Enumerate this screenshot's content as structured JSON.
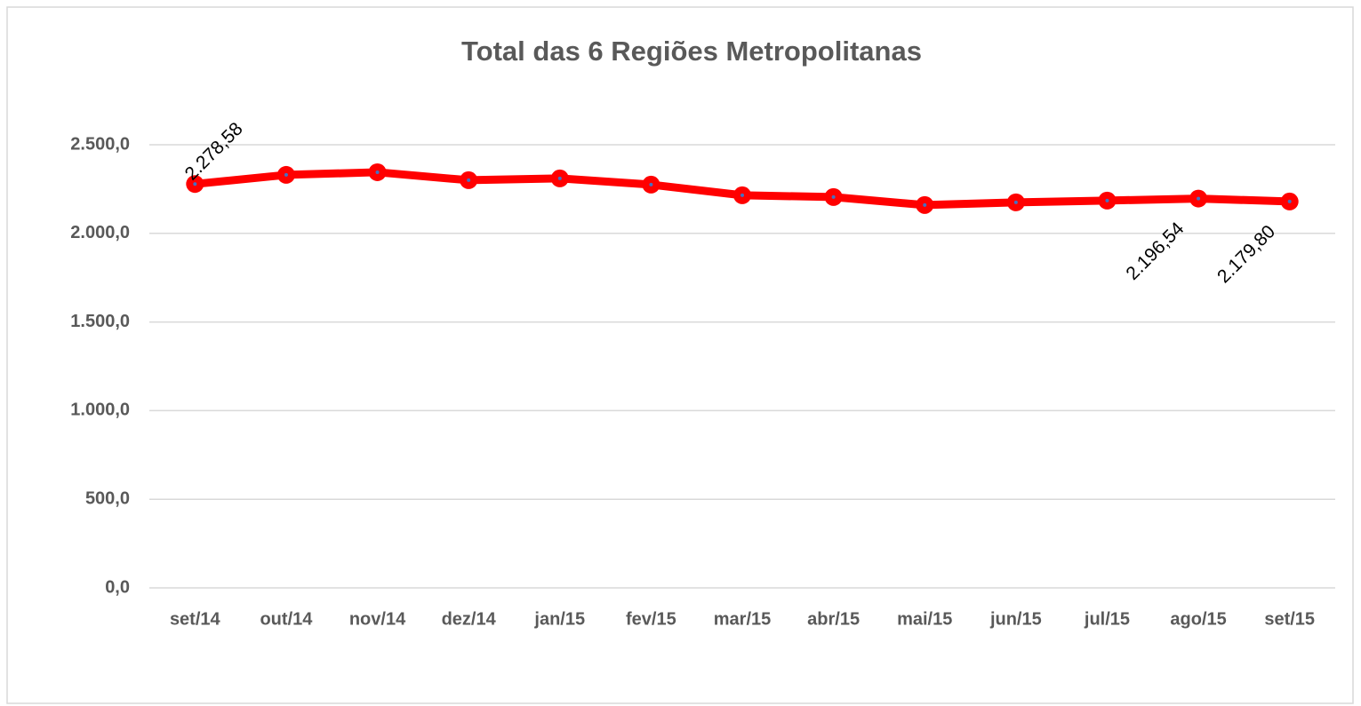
{
  "chart_data": {
    "type": "line",
    "title": "Total das 6 Regiões Metropolitanas",
    "categories": [
      "set/14",
      "out/14",
      "nov/14",
      "dez/14",
      "jan/15",
      "fev/15",
      "mar/15",
      "abr/15",
      "mai/15",
      "jun/15",
      "jul/15",
      "ago/15",
      "set/15"
    ],
    "values": [
      2278.58,
      2330,
      2345,
      2300,
      2310,
      2275,
      2215,
      2205,
      2160,
      2175,
      2185,
      2196.54,
      2179.8
    ],
    "value_labels": [
      "2.278,58",
      null,
      null,
      null,
      null,
      null,
      null,
      null,
      null,
      null,
      null,
      "2.196,54",
      "2.179,80"
    ],
    "color": "#ff0000",
    "ylim": [
      0,
      2500
    ],
    "yticks": [
      {
        "value": 0,
        "label": "0,0"
      },
      {
        "value": 500,
        "label": "500,0"
      },
      {
        "value": 1000,
        "label": "1.000,0"
      },
      {
        "value": 1500,
        "label": "1.500,0"
      },
      {
        "value": 2000,
        "label": "2.000,0"
      },
      {
        "value": 2500,
        "label": "2.500,0"
      }
    ],
    "grid": true
  }
}
